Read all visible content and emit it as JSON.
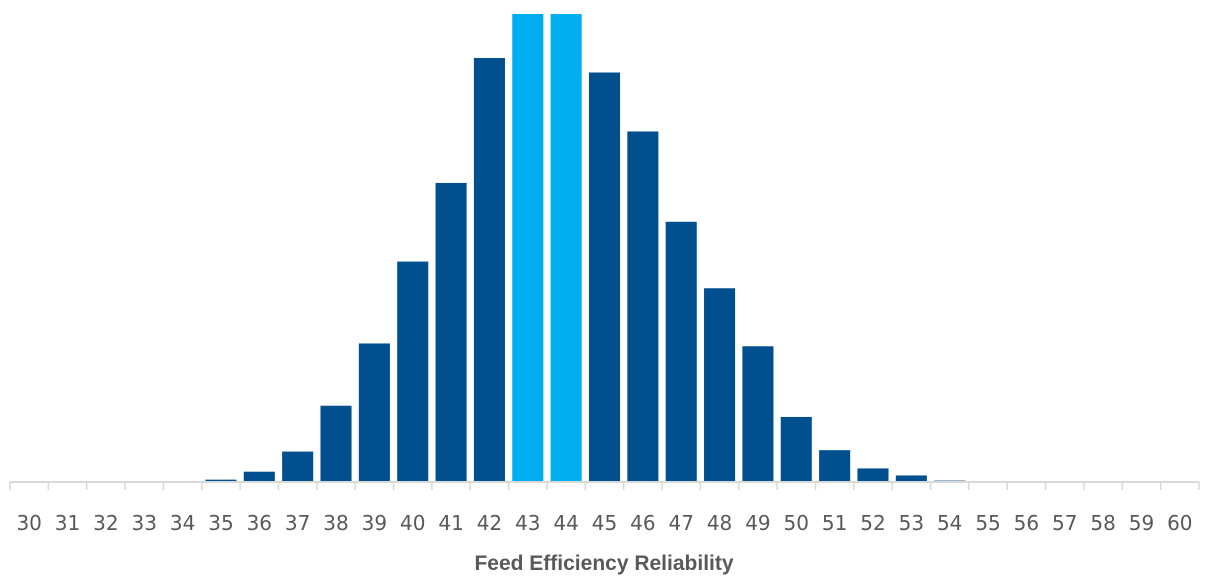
{
  "chart_data": {
    "type": "bar",
    "title": "",
    "xlabel": "Feed Efficiency Reliability",
    "ylabel": "",
    "categories": [
      "30",
      "31",
      "32",
      "33",
      "34",
      "35",
      "36",
      "37",
      "38",
      "39",
      "40",
      "41",
      "42",
      "43",
      "44",
      "45",
      "46",
      "47",
      "48",
      "49",
      "50",
      "51",
      "52",
      "53",
      "54",
      "55",
      "56",
      "57",
      "58",
      "59",
      "60"
    ],
    "values": [
      0,
      0,
      0,
      0,
      0,
      0.5,
      2.2,
      6.5,
      16.3,
      29.6,
      47.1,
      63.9,
      90.6,
      100,
      100,
      87.5,
      74.9,
      55.6,
      41.4,
      29.0,
      13.9,
      6.8,
      2.9,
      1.4,
      0.3,
      0,
      0,
      0,
      0,
      0,
      0
    ],
    "highlight_categories": [
      "43",
      "44"
    ],
    "ylim": [
      0,
      100
    ],
    "grid": false,
    "legend": "none",
    "colors": {
      "bar": "#00508F",
      "highlight": "#00AEEF",
      "axis": "#D9D9D9",
      "text": "#595959"
    }
  }
}
